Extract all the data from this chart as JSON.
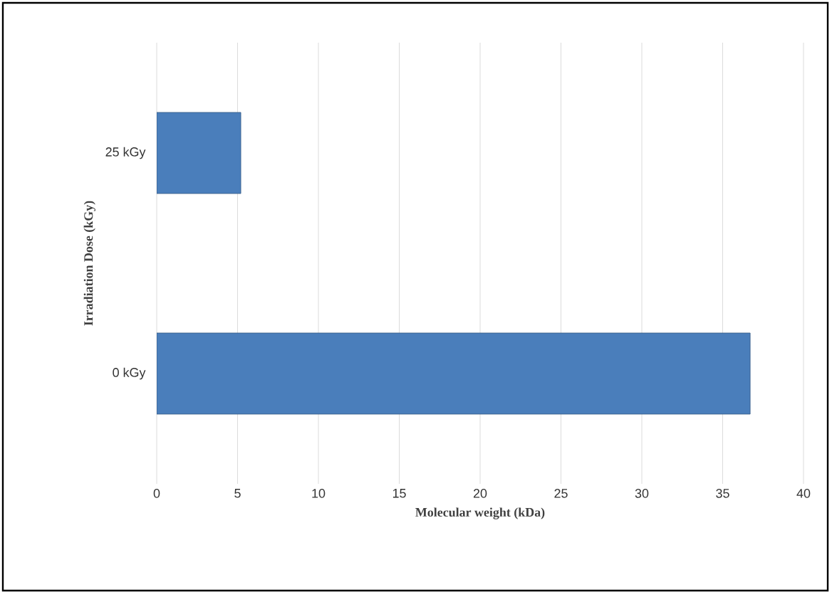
{
  "chart_data": {
    "type": "bar",
    "orientation": "horizontal",
    "xlabel": "Molecular weight (kDa)",
    "ylabel": "Irradiation Dose (kGy)",
    "categories": [
      "25 kGy",
      "0 kGy"
    ],
    "values": [
      5.2,
      36.7
    ],
    "color": "#4a7ebb",
    "xlim": [
      0,
      40
    ],
    "xticks": [
      0,
      5,
      10,
      15,
      20,
      25,
      30,
      35,
      40
    ],
    "grid": "x"
  }
}
